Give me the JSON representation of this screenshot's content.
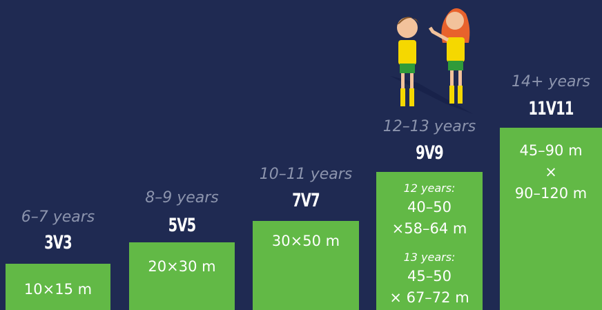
{
  "columns": [
    {
      "age": "6–7 years",
      "format": "3V3",
      "blocks": [
        {
          "lines": [
            "10×15 m"
          ]
        }
      ]
    },
    {
      "age": "8–9 years",
      "format": "5V5",
      "blocks": [
        {
          "lines": [
            "20×30 m"
          ]
        }
      ]
    },
    {
      "age": "10–11 years",
      "format": "7V7",
      "blocks": [
        {
          "lines": [
            "30×50 m"
          ]
        }
      ]
    },
    {
      "age": "12–13 years",
      "format": "9V9",
      "blocks": [
        {
          "label": "12 years:",
          "lines": [
            "40–50",
            "×58–64 m"
          ]
        },
        {
          "label": "13 years:",
          "lines": [
            "45–50",
            "× 67–72 m"
          ]
        }
      ]
    },
    {
      "age": "14+ years",
      "format": "11V11",
      "blocks": [
        {
          "lines": [
            "45–90 m",
            "×",
            "90–120 m"
          ]
        }
      ]
    }
  ]
}
